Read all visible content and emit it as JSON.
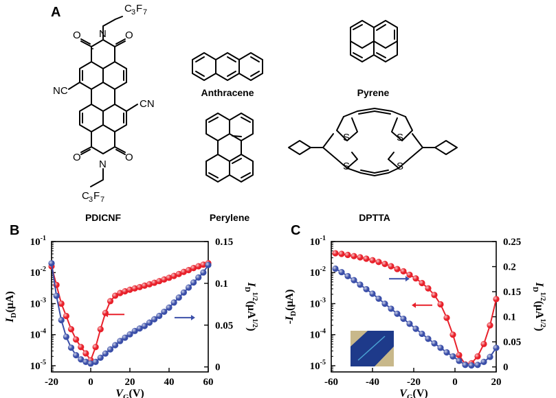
{
  "panel_labels": {
    "a": "A",
    "b": "B",
    "c": "C"
  },
  "structures": {
    "pdicnf": {
      "name": "PDICNF",
      "N": "N",
      "O": "O",
      "CN": "CN",
      "NC": "NC",
      "C3F7_C": "C",
      "C3F7_3": "3",
      "C3F7_F": "F",
      "C3F7_7": "7"
    },
    "anthracene": {
      "name": "Anthracene"
    },
    "pyrene": {
      "name": "Pyrene"
    },
    "perylene": {
      "name": "Perylene"
    },
    "dptta": {
      "name": "DPTTA",
      "S": "S"
    }
  },
  "chart_data": [
    {
      "panel": "B",
      "type": "scatter",
      "markers": "spheres with connecting lines",
      "xlabel_main": "V",
      "xlabel_sub": "G",
      "xlabel_unit": "(V)",
      "ylabel_left": "I_D(μA)",
      "ylabel_right": "I_D^1/2(μA^1/2)",
      "x_ticks": [
        "-20",
        "0",
        "20",
        "40",
        "60"
      ],
      "xlim": [
        -20,
        60
      ],
      "y_left_scale": "log",
      "y_left_ticks": [
        "10-1",
        "10-2",
        "10-3",
        "10-4",
        "10-5"
      ],
      "y_left_exponents": [
        -1,
        -2,
        -3,
        -4,
        -5
      ],
      "ylim_left_exp": [
        -5.2,
        -1
      ],
      "y_right_ticks": [
        "0.15",
        "0.1",
        "0.05",
        "0"
      ],
      "ylim_right": [
        -0.006,
        0.15
      ],
      "series": [
        {
          "color": "#e8202a",
          "axis": "left",
          "x": [
            -20,
            -17.5,
            -15,
            -12.5,
            -10,
            -7.5,
            -5,
            -2.5,
            0,
            2.5,
            5,
            7.5,
            10,
            12.5,
            15,
            17.5,
            20,
            22.5,
            25,
            27.5,
            30,
            32.5,
            35,
            37.5,
            40,
            42.5,
            45,
            47.5,
            50,
            52.5,
            55,
            57.5,
            60
          ],
          "y": [
            0.016,
            0.004,
            0.001,
            0.0004,
            0.00015,
            7e-05,
            4e-05,
            2.5e-05,
            1.5e-05,
            4e-05,
            0.00015,
            0.0005,
            0.0012,
            0.0018,
            0.0022,
            0.0025,
            0.0028,
            0.0031,
            0.0034,
            0.0038,
            0.0042,
            0.0047,
            0.0053,
            0.006,
            0.0068,
            0.0078,
            0.009,
            0.0105,
            0.012,
            0.014,
            0.016,
            0.018,
            0.02
          ]
        },
        {
          "color": "#3a4ea8",
          "axis": "right",
          "x": [
            -20,
            -17.5,
            -15,
            -12.5,
            -10,
            -7.5,
            -5,
            -2.5,
            0,
            2.5,
            5,
            7.5,
            10,
            12.5,
            15,
            17.5,
            20,
            22.5,
            25,
            27.5,
            30,
            32.5,
            35,
            37.5,
            40,
            42.5,
            45,
            47.5,
            50,
            52.5,
            55,
            57.5,
            60
          ],
          "y": [
            0.124,
            0.085,
            0.056,
            0.036,
            0.023,
            0.014,
            0.009,
            0.006,
            0.004,
            0.006,
            0.011,
            0.016,
            0.021,
            0.026,
            0.031,
            0.035,
            0.039,
            0.043,
            0.046,
            0.049,
            0.053,
            0.057,
            0.061,
            0.066,
            0.071,
            0.077,
            0.083,
            0.089,
            0.095,
            0.101,
            0.107,
            0.113,
            0.122
          ]
        }
      ],
      "arrows": [
        {
          "color": "#e8202a",
          "direction": "left",
          "x": 13,
          "y_exp": -3.35
        },
        {
          "color": "#3a4ea8",
          "direction": "right",
          "x": 47,
          "y_exp": -3.45
        }
      ]
    },
    {
      "panel": "C",
      "type": "scatter",
      "markers": "spheres with connecting lines",
      "xlabel_main": "V",
      "xlabel_sub": "G",
      "xlabel_unit": "(V)",
      "ylabel_left": "-I_D(μA)",
      "ylabel_right": "I_D^1/2(μA^1/2)",
      "x_ticks": [
        "-60",
        "-40",
        "-20",
        "0",
        "20"
      ],
      "xlim": [
        -60,
        20
      ],
      "y_left_scale": "log",
      "y_left_ticks": [
        "10-1",
        "10-2",
        "10-3",
        "10-4",
        "10-5"
      ],
      "y_left_exponents": [
        -1,
        -2,
        -3,
        -4,
        -5
      ],
      "ylim_left_exp": [
        -5.2,
        -1
      ],
      "y_right_ticks": [
        "0.25",
        "0.2",
        "0.15",
        "0.1",
        "0.05",
        "0"
      ],
      "ylim_right": [
        -0.01,
        0.25
      ],
      "inset": "optical micrograph of device (blue crystal on gold electrodes)",
      "series": [
        {
          "color": "#e8202a",
          "axis": "left",
          "x": [
            -58,
            -55,
            -52,
            -49,
            -46,
            -43,
            -40,
            -37,
            -34,
            -31,
            -28,
            -25,
            -22,
            -19,
            -16,
            -13,
            -10,
            -7,
            -4,
            -1,
            2,
            5,
            8,
            11,
            14,
            17,
            20
          ],
          "y": [
            0.042,
            0.04,
            0.037,
            0.034,
            0.031,
            0.028,
            0.025,
            0.022,
            0.019,
            0.016,
            0.013,
            0.011,
            0.0085,
            0.0065,
            0.0046,
            0.0031,
            0.0019,
            0.00095,
            0.00035,
            0.0001,
            2.2e-05,
            1.1e-05,
            1.2e-05,
            2e-05,
            5e-05,
            0.0002,
            0.0014
          ]
        },
        {
          "color": "#3a4ea8",
          "axis": "right",
          "x": [
            -58,
            -55,
            -52,
            -49,
            -46,
            -43,
            -40,
            -37,
            -34,
            -31,
            -28,
            -25,
            -22,
            -19,
            -16,
            -13,
            -10,
            -7,
            -4,
            -1,
            2,
            5,
            8,
            11,
            14,
            17,
            20
          ],
          "y": [
            0.196,
            0.189,
            0.181,
            0.173,
            0.164,
            0.155,
            0.146,
            0.136,
            0.126,
            0.116,
            0.106,
            0.096,
            0.086,
            0.076,
            0.066,
            0.056,
            0.047,
            0.038,
            0.029,
            0.021,
            0.012,
            0.004,
            0.003,
            0.004,
            0.01,
            0.02,
            0.038
          ]
        }
      ],
      "arrows": [
        {
          "color": "#3a4ea8",
          "direction": "right",
          "x": -28,
          "y_exp": -2.2
        },
        {
          "color": "#e8202a",
          "direction": "left",
          "x": -15,
          "y_exp": -3.05
        }
      ]
    }
  ]
}
